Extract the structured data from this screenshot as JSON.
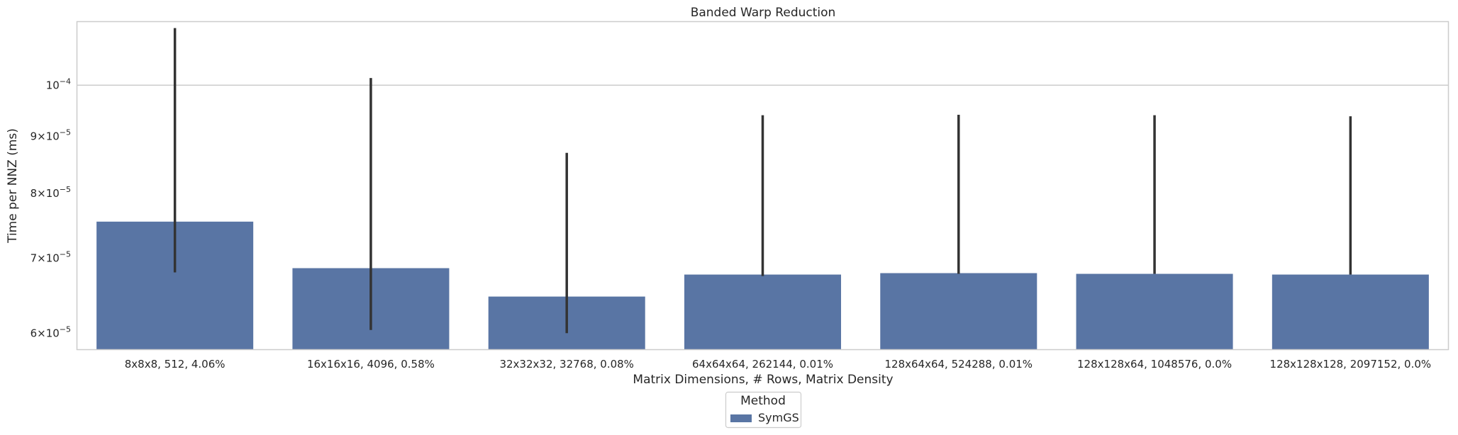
{
  "chart_data": {
    "type": "bar",
    "title": "Banded Warp Reduction",
    "xlabel": "Matrix Dimensions, # Rows, Matrix Density",
    "ylabel": "Time per NNZ (ms)",
    "yscale": "log",
    "ylim": [
      5.8e-05,
      0.000114
    ],
    "grid": "horizontal",
    "categories": [
      "8x8x8, 512, 4.06%",
      "16x16x16, 4096, 0.58%",
      "32x32x32, 32768, 0.08%",
      "64x64x64, 262144, 0.01%",
      "128x64x64, 524288, 0.01%",
      "128x128x64, 1048576, 0.0%",
      "128x128x128, 2097152, 0.0%"
    ],
    "yticks": [
      {
        "value": 6e-05,
        "mant": "6",
        "exp": "−5"
      },
      {
        "value": 7e-05,
        "mant": "7",
        "exp": "−5"
      },
      {
        "value": 8e-05,
        "mant": "8",
        "exp": "−5"
      },
      {
        "value": 9e-05,
        "mant": "9",
        "exp": "−5"
      },
      {
        "value": 0.0001,
        "mant": "",
        "exp": "−4"
      }
    ],
    "series": [
      {
        "name": "SymGS",
        "color": "#5975a4",
        "values": [
          7.55e-05,
          6.86e-05,
          6.47e-05,
          6.77e-05,
          6.79e-05,
          6.78e-05,
          6.77e-05
        ],
        "err_low": [
          6.8e-05,
          6.04e-05,
          6e-05,
          6.75e-05,
          6.78e-05,
          6.78e-05,
          6.77e-05
        ],
        "err_high": [
          0.0001125,
          0.0001015,
          8.7e-05,
          9.4e-05,
          9.41e-05,
          9.4e-05,
          9.38e-05
        ]
      }
    ],
    "legend": {
      "title": "Method",
      "placement": "below"
    }
  }
}
